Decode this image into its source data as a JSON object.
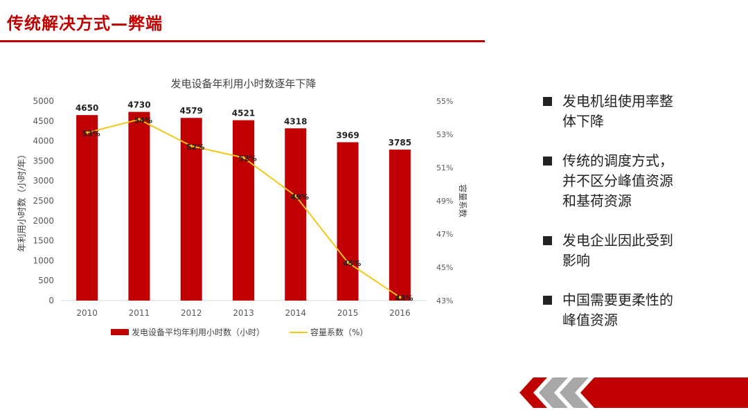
{
  "slide": {
    "title": "传统解决方式—弊端"
  },
  "bullets": [
    "发电机组使用率整\n体下降",
    "传统的调度方式，\n并不区分峰值资源\n和基荷资源",
    "发电企业因此受到\n影响",
    "中国需要更柔性的\n峰值资源"
  ],
  "colors": {
    "accent": "#c00000",
    "bar": "#c00000",
    "line": "#f5c518",
    "bullet": "#222222"
  },
  "chart_data": {
    "type": "bar",
    "title": "发电设备年利用小时数逐年下降",
    "categories": [
      "2010",
      "2011",
      "2012",
      "2013",
      "2014",
      "2015",
      "2016"
    ],
    "series": [
      {
        "name": "发电设备平均年利用小时数（小时）",
        "type": "bar",
        "axis": "left",
        "values": [
          4650,
          4730,
          4579,
          4521,
          4318,
          3969,
          3785
        ],
        "labels": [
          "4650",
          "4730",
          "4579",
          "4521",
          "4318",
          "3969",
          "3785"
        ]
      },
      {
        "name": "容量系数（%）",
        "type": "line",
        "axis": "right",
        "values": [
          53.1,
          53.9,
          52.3,
          51.6,
          49.3,
          45.3,
          43.2
        ],
        "labels": [
          "53%",
          "54%",
          "52%",
          "52%",
          "49%",
          "45%",
          "43%"
        ]
      }
    ],
    "ylabel": "年利用小时数（小时/年）",
    "y2label": "容量系数",
    "ylim": [
      0,
      5000
    ],
    "yticks": [
      "0",
      "500",
      "1000",
      "1500",
      "2000",
      "2500",
      "3000",
      "3500",
      "4000",
      "4500",
      "5000"
    ],
    "y2lim": [
      43,
      55
    ],
    "y2ticks": [
      "43%",
      "45%",
      "47%",
      "49%",
      "51%",
      "53%",
      "55%"
    ],
    "grid": false,
    "legend": "bottom"
  }
}
